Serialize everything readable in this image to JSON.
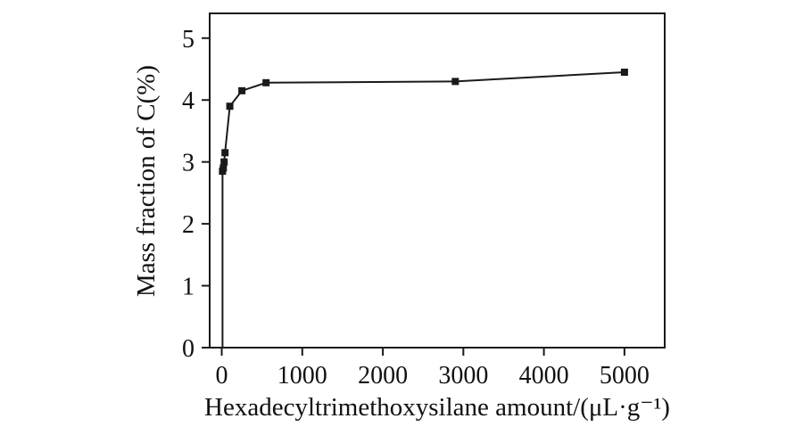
{
  "figure": {
    "background": "#ffffff",
    "ink_color": "#1a1a1a"
  },
  "chart_data": {
    "type": "line",
    "title": "",
    "xlabel": "Hexadecyltrimethoxysilane amount/(μL·g⁻¹)",
    "ylabel": "Mass fraction of C(%)",
    "xlim": [
      -150,
      5500
    ],
    "ylim": [
      0,
      5.4
    ],
    "xticks": [
      0,
      1000,
      2000,
      3000,
      4000,
      5000
    ],
    "yticks": [
      0,
      1,
      2,
      3,
      4,
      5
    ],
    "grid": false,
    "legend_position": "none",
    "line_color": "#1a1a1a",
    "marker": "square",
    "marker_size": 8,
    "line_leadin_point": [
      10,
      0
    ],
    "series": [
      {
        "name": "Mass fraction of C",
        "points": [
          [
            10,
            2.85
          ],
          [
            20,
            2.9
          ],
          [
            30,
            3.0
          ],
          [
            40,
            3.15
          ],
          [
            100,
            3.9
          ],
          [
            250,
            4.15
          ],
          [
            550,
            4.28
          ],
          [
            2900,
            4.3
          ],
          [
            5000,
            4.45
          ]
        ]
      }
    ]
  }
}
